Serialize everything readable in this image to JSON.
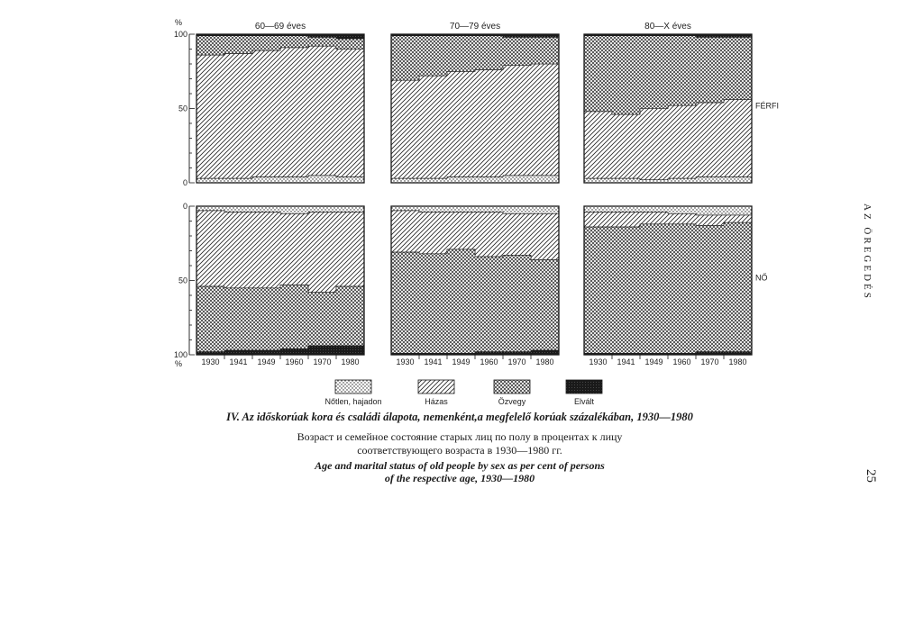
{
  "running_head": "AZ ÖREGEDÉS",
  "page_number": "25",
  "captions": {
    "hungarian": "IV. Az időskorúak kora és családi álapota, nemenként,a megfelelő korúak százalékában, 1930—1980",
    "russian_line1": "Возраст и семейное состояние старых лиц по полу в процентах к лицу",
    "russian_line2": "соответствующего возраста в 1930—1980 гг.",
    "english_line1": "Age and marital status of old people by sex as per cent of persons",
    "english_line2": "of the respective age, 1930—1980"
  },
  "colors": {
    "ink": "#1a1a1a",
    "paper": "#ffffff"
  },
  "chart_data": {
    "type": "area",
    "layout": "small multiples, stacked 100%",
    "x": [
      "1930",
      "1941",
      "1949",
      "1960",
      "1970",
      "1980"
    ],
    "y_unit": "%",
    "y_ticks_top": [
      "100",
      "50",
      "0"
    ],
    "y_ticks_bottom": [
      "0",
      "50",
      "100"
    ],
    "y_unit_label_top": "%",
    "y_unit_label_bottom": "%",
    "legend": [
      "Nőtlen, hajadon",
      "Házas",
      "Özvegy",
      "Elvált"
    ],
    "legend_placement": "bottom",
    "panels": [
      {
        "age_group": "60—69 éves",
        "sex": "FÉRFI",
        "row": "top",
        "series": [
          {
            "name": "Nőtlen, hajadon",
            "values": [
              3,
              3,
              4,
              4,
              5,
              4
            ]
          },
          {
            "name": "Házas",
            "values": [
              83,
              84,
              85,
              87,
              87,
              86
            ]
          },
          {
            "name": "Özvegy",
            "values": [
              13,
              12,
              10,
              8,
              6,
              7
            ]
          },
          {
            "name": "Elvált",
            "values": [
              1,
              1,
              1,
              1,
              2,
              3
            ]
          }
        ]
      },
      {
        "age_group": "70—79 éves",
        "sex": "FÉRFI",
        "row": "top",
        "series": [
          {
            "name": "Nőtlen, hajadon",
            "values": [
              3,
              3,
              4,
              4,
              5,
              5
            ]
          },
          {
            "name": "Házas",
            "values": [
              66,
              69,
              71,
              72,
              74,
              75
            ]
          },
          {
            "name": "Özvegy",
            "values": [
              30,
              27,
              24,
              23,
              19,
              18
            ]
          },
          {
            "name": "Elvált",
            "values": [
              1,
              1,
              1,
              1,
              2,
              2
            ]
          }
        ]
      },
      {
        "age_group": "80—X éves",
        "sex": "FÉRFI",
        "row": "top",
        "series": [
          {
            "name": "Nőtlen, hajadon",
            "values": [
              3,
              3,
              2,
              3,
              4,
              4
            ]
          },
          {
            "name": "Házas",
            "values": [
              45,
              43,
              48,
              49,
              50,
              52
            ]
          },
          {
            "name": "Özvegy",
            "values": [
              51,
              53,
              49,
              47,
              44,
              42
            ]
          },
          {
            "name": "Elvált",
            "values": [
              1,
              1,
              1,
              1,
              2,
              2
            ]
          }
        ]
      },
      {
        "age_group": "60—69 éves",
        "sex": "NŐ",
        "row": "bottom",
        "series": [
          {
            "name": "Nőtlen, hajadon",
            "values": [
              3,
              4,
              4,
              5,
              4,
              4
            ]
          },
          {
            "name": "Házas",
            "values": [
              51,
              51,
              51,
              48,
              54,
              50
            ]
          },
          {
            "name": "Özvegy",
            "values": [
              44,
              42,
              42,
              43,
              36,
              40
            ]
          },
          {
            "name": "Elvált",
            "values": [
              2,
              3,
              3,
              4,
              6,
              6
            ]
          }
        ]
      },
      {
        "age_group": "70—79 éves",
        "sex": "NŐ",
        "row": "bottom",
        "series": [
          {
            "name": "Nőtlen, hajadon",
            "values": [
              3,
              4,
              4,
              4,
              5,
              5
            ]
          },
          {
            "name": "Házas",
            "values": [
              28,
              28,
              25,
              30,
              28,
              31
            ]
          },
          {
            "name": "Özvegy",
            "values": [
              68,
              67,
              70,
              64,
              65,
              61
            ]
          },
          {
            "name": "Elvált",
            "values": [
              1,
              1,
              1,
              2,
              2,
              3
            ]
          }
        ]
      },
      {
        "age_group": "80—X éves",
        "sex": "NŐ",
        "row": "bottom",
        "series": [
          {
            "name": "Nőtlen, hajadon",
            "values": [
              4,
              4,
              4,
              5,
              6,
              6
            ]
          },
          {
            "name": "Házas",
            "values": [
              10,
              10,
              8,
              7,
              7,
              5
            ]
          },
          {
            "name": "Özvegy",
            "values": [
              85,
              85,
              87,
              87,
              85,
              87
            ]
          },
          {
            "name": "Elvált",
            "values": [
              1,
              1,
              1,
              1,
              2,
              2
            ]
          }
        ]
      }
    ]
  }
}
